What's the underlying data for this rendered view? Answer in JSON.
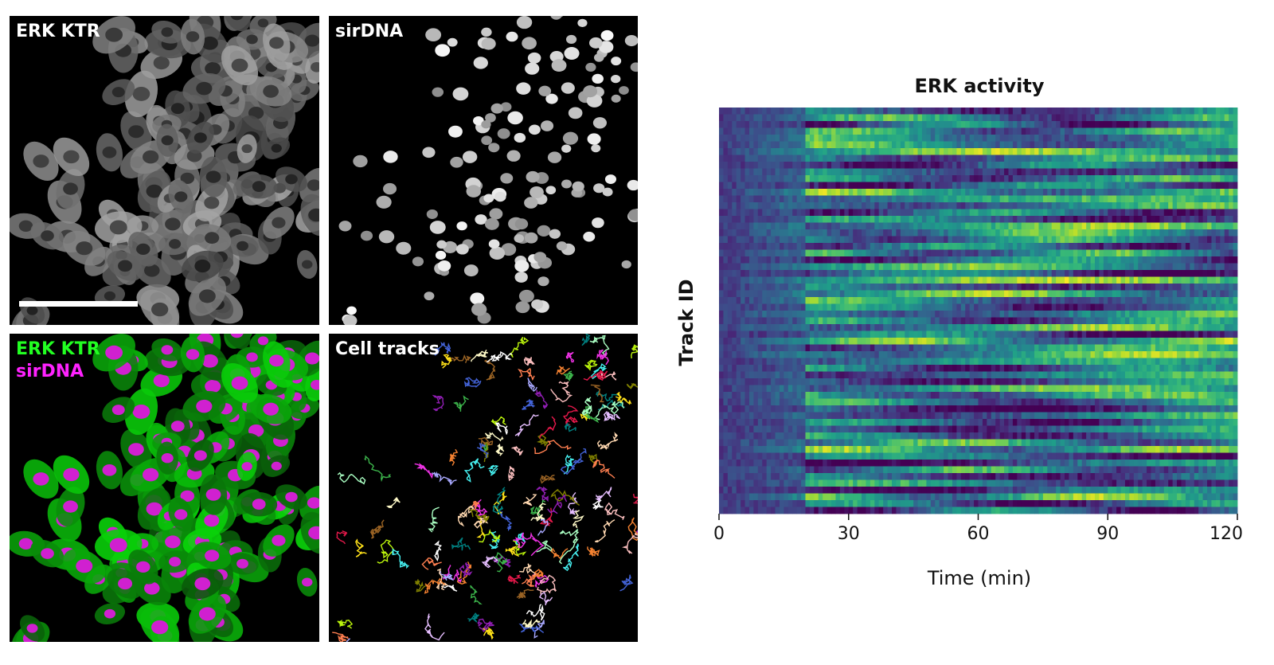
{
  "panels": {
    "erk_ktr": {
      "label": "ERK KTR"
    },
    "sirdna": {
      "label": "sirDNA"
    },
    "merge": {
      "label_green": "ERK KTR",
      "label_magenta": "sirDNA"
    },
    "tracks": {
      "label": "Cell tracks"
    }
  },
  "colors": {
    "merge_green": "#22ff22",
    "merge_magenta": "#ff22ff",
    "viridis_low": "#440154",
    "viridis_mid": "#21908d",
    "viridis_high": "#fde725"
  },
  "chart_data": {
    "type": "heatmap",
    "title": "ERK activity",
    "xlabel": "Time (min)",
    "ylabel": "Track ID",
    "xlim": [
      0,
      120
    ],
    "xticks": [
      0,
      30,
      60,
      90,
      120
    ],
    "colormap": "viridis",
    "n_tracks": 60,
    "n_timepoints": 120
  }
}
